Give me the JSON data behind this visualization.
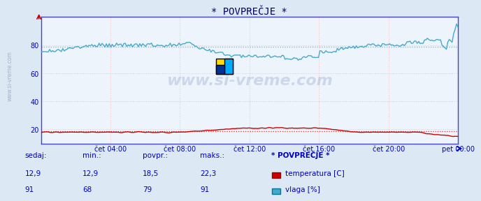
{
  "title": "* POVPREČJE *",
  "title_color": "#000066",
  "bg_color": "#dce9f5",
  "plot_bg_color": "#eef4fb",
  "xlabel_color": "#0000bb",
  "watermark": "www.si-vreme.com",
  "xlim": [
    0,
    288
  ],
  "ylim": [
    10,
    100
  ],
  "yticks": [
    20,
    40,
    60,
    80
  ],
  "xtick_labels": [
    "čet 04:00",
    "čet 08:00",
    "čet 12:00",
    "čet 16:00",
    "čet 20:00",
    "pet 00:00"
  ],
  "xtick_positions": [
    48,
    96,
    144,
    192,
    240,
    288
  ],
  "temp_color": "#cc0000",
  "humidity_color": "#44aacc",
  "avg_temp": 18.5,
  "avg_humidity": 79,
  "footer_labels": [
    "sedaj:",
    "min.:",
    "povpr.:",
    "maks.:",
    "* POVPREČJE *"
  ],
  "footer_temp": [
    "12,9",
    "12,9",
    "18,5",
    "22,3"
  ],
  "footer_humidity": [
    "91",
    "68",
    "79",
    "91"
  ],
  "legend_temp": "temperatura [C]",
  "legend_humidity": "vlaga [%]",
  "ylabel_text": "www.si-vreme.com",
  "spine_color": "#4444cc",
  "grid_color": "#ffbbbb",
  "avg_line_color_h": "#bb5555",
  "avg_line_color_t": "#bb5555"
}
